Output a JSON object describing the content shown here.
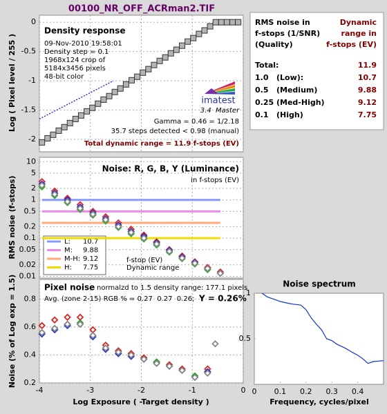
{
  "title": "00100_NR_OFF_ACRman2.TIF",
  "chart_data": [
    {
      "type": "scatter",
      "title": "Density response",
      "ylabel": "Log ( Pixel level / 255 )",
      "notes": [
        "09-Nov-2010 19:58:01",
        "Density step = 0.1",
        "1968x124 crop of",
        "5184x3456 pixels",
        "48-bit color"
      ],
      "logo": "imatest",
      "version": "3.4  Master",
      "gamma": "Gamma = 0.46 = 1/2.18",
      "steps": "35.7 steps detected < 0.98 (manual)",
      "total": "Total dynamic range = 11.9 f-stops (EV)",
      "x": [
        -3.95,
        -3.84,
        -3.73,
        -3.62,
        -3.51,
        -3.4,
        -3.29,
        -3.18,
        -3.07,
        -2.96,
        -2.85,
        -2.74,
        -2.63,
        -2.52,
        -2.41,
        -2.3,
        -2.19,
        -2.08,
        -1.97,
        -1.86,
        -1.75,
        -1.64,
        -1.53,
        -1.42,
        -1.31,
        -1.2,
        -1.09,
        -0.98,
        -0.87,
        -0.76,
        -0.65,
        -0.54,
        -0.43,
        -0.32,
        -0.21,
        -0.1
      ],
      "values": [
        -2.05,
        -1.98,
        -1.92,
        -1.85,
        -1.79,
        -1.72,
        -1.65,
        -1.59,
        -1.52,
        -1.46,
        -1.39,
        -1.32,
        -1.26,
        -1.19,
        -1.13,
        -1.06,
        -0.99,
        -0.93,
        -0.86,
        -0.8,
        -0.73,
        -0.66,
        -0.6,
        -0.53,
        -0.47,
        -0.4,
        -0.33,
        -0.27,
        -0.2,
        -0.14,
        -0.07,
        0,
        0,
        0,
        0,
        0
      ],
      "color": "#b4b4b4",
      "fit_line": {
        "x": [
          -4,
          -2.55
        ],
        "values": [
          -1.65,
          -1.0
        ],
        "color": "#0000ee"
      },
      "xlim": [
        -4,
        0
      ],
      "xticks": [
        -4,
        -3,
        -2,
        -1,
        0
      ],
      "ylim": [
        -2.21,
        0.12
      ],
      "yticks": [
        0,
        -0.5,
        -1,
        -1.5,
        -2
      ],
      "grid": true
    },
    {
      "type": "scatter",
      "title": "Noise: R, G, B, Y (Luminance)",
      "subtitle": "in f-stops (EV)",
      "ylabel": "RMS noise (f-stops)",
      "legend_note": [
        "f-stop (EV)",
        "Dynamic range"
      ],
      "log": true,
      "x": [
        -3.95,
        -3.7,
        -3.45,
        -3.2,
        -2.95,
        -2.7,
        -2.45,
        -2.2,
        -1.95,
        -1.7,
        -1.45,
        -1.2,
        -0.95,
        -0.7,
        -0.45
      ],
      "series": [
        {
          "color": "#dd2222",
          "values": [
            3.0,
            1.7,
            1.1,
            0.75,
            0.5,
            0.36,
            0.25,
            0.17,
            0.12,
            0.08,
            0.05,
            0.034,
            0.024,
            0.017,
            0.013
          ]
        },
        {
          "color": "#22aa22",
          "values": [
            2.2,
            1.3,
            0.85,
            0.56,
            0.4,
            0.28,
            0.19,
            0.13,
            0.095,
            0.066,
            0.043,
            0.029,
            0.021,
            0.015,
            0.012
          ]
        },
        {
          "color": "#2233cc",
          "values": [
            2.6,
            1.5,
            1.0,
            0.65,
            0.45,
            0.32,
            0.22,
            0.15,
            0.11,
            0.075,
            0.048,
            0.032,
            0.023,
            0.016,
            0.012
          ]
        },
        {
          "color": "#888888",
          "values": [
            2.4,
            1.4,
            0.9,
            0.6,
            0.42,
            0.3,
            0.2,
            0.14,
            0.1,
            0.07,
            0.045,
            0.03,
            0.022,
            0.016,
            0.012
          ]
        }
      ],
      "ranges": [
        {
          "name": "L:",
          "dynamic_range": 10.7,
          "noise": 1,
          "color": "#8899ff"
        },
        {
          "name": "M:",
          "dynamic_range": 9.88,
          "noise": 0.5,
          "color": "#ee88ee"
        },
        {
          "name": "M-H:",
          "dynamic_range": 9.12,
          "noise": 0.25,
          "color": "#ffaa77"
        },
        {
          "name": "H:",
          "dynamic_range": 7.75,
          "noise": 0.1,
          "color": "#eedd00"
        }
      ],
      "xlim": [
        -4,
        0
      ],
      "xticks": [
        -4,
        -3,
        -2,
        -1,
        0
      ],
      "ylim": [
        0.009,
        13
      ],
      "yticks": [
        10,
        5,
        2,
        1,
        0.5,
        0.2,
        0.1,
        0.05,
        0.02,
        0.01
      ],
      "grid": true
    },
    {
      "type": "scatter",
      "title": "Pixel noise",
      "subtitle": "normalzd to 1.5 density range: 177.1 pixels",
      "average": "Avg. (zone 2-15) RGB % = 0.27  0.27  0.26;",
      "y_average": "Y = 0.26%",
      "ylabel": "Noise (% of Log exp = 1.5)",
      "xlabel": "Log Exposure ( -Target density )",
      "x": [
        -3.95,
        -3.7,
        -3.45,
        -3.2,
        -2.95,
        -2.7,
        -2.45,
        -2.2,
        -1.95,
        -1.7,
        -1.45,
        -1.2,
        -0.95,
        -0.7,
        -0.55
      ],
      "series": [
        {
          "color": "#dd2222",
          "values": [
            0.61,
            0.65,
            0.67,
            0.67,
            0.58,
            0.47,
            0.43,
            0.41,
            0.38,
            0.35,
            0.33,
            0.3,
            0.25,
            0.3,
            null
          ]
        },
        {
          "color": "#22aa22",
          "values": [
            0.56,
            0.59,
            0.62,
            0.63,
            0.54,
            0.45,
            0.42,
            0.4,
            0.37,
            0.35,
            0.32,
            0.29,
            0.25,
            0.28,
            null
          ]
        },
        {
          "color": "#2233cc",
          "values": [
            0.55,
            0.58,
            0.61,
            0.62,
            0.53,
            0.44,
            0.41,
            0.39,
            0.37,
            0.34,
            0.32,
            0.29,
            0.24,
            0.28,
            null
          ]
        },
        {
          "color": "#888888",
          "values": [
            0.56,
            0.59,
            0.62,
            0.62,
            0.54,
            0.45,
            0.42,
            0.4,
            0.37,
            0.34,
            0.32,
            0.29,
            0.24,
            0.27,
            0.48
          ]
        }
      ],
      "xlim": [
        -4,
        0
      ],
      "xticks": [
        -4,
        -3,
        -2,
        -1,
        0
      ],
      "ylim": [
        0.2,
        0.94
      ],
      "yticks": [
        0.2,
        0.4,
        0.6,
        0.8
      ],
      "grid": true
    },
    {
      "type": "line",
      "title": "Noise spectrum",
      "xlabel": "Frequency, cycles/pixel",
      "x": [
        0.03,
        0.05,
        0.08,
        0.1,
        0.13,
        0.15,
        0.18,
        0.2,
        0.22,
        0.24,
        0.26,
        0.28,
        0.3,
        0.32,
        0.35,
        0.38,
        0.4,
        0.42,
        0.44,
        0.46,
        0.5
      ],
      "values": [
        1.0,
        0.96,
        0.93,
        0.91,
        0.89,
        0.88,
        0.87,
        0.82,
        0.73,
        0.66,
        0.6,
        0.5,
        0.48,
        0.44,
        0.4,
        0.35,
        0.32,
        0.28,
        0.23,
        0.25,
        0.26
      ],
      "color": "#1133cc",
      "xlim": [
        0,
        0.5
      ],
      "xticks": [
        0,
        0.1,
        0.2,
        0.3,
        0.4
      ],
      "ylim": [
        0,
        1
      ],
      "yticks": [
        0.5,
        1
      ],
      "grid": false
    }
  ],
  "summary": {
    "left_header": [
      "RMS noise in",
      "f-stops (1/SNR)",
      "(Quality)"
    ],
    "right_header": [
      "Dynamic",
      "range in",
      "f-stops (EV)"
    ],
    "rows": [
      [
        "Total:",
        "",
        "11.9"
      ],
      [
        "1.0",
        "(Low):",
        "10.7"
      ],
      [
        "0.5",
        "(Medium)",
        "9.88"
      ],
      [
        "0.25",
        "(Med-High)",
        "9.12"
      ],
      [
        "0.1",
        "(High)",
        "7.75"
      ]
    ]
  }
}
